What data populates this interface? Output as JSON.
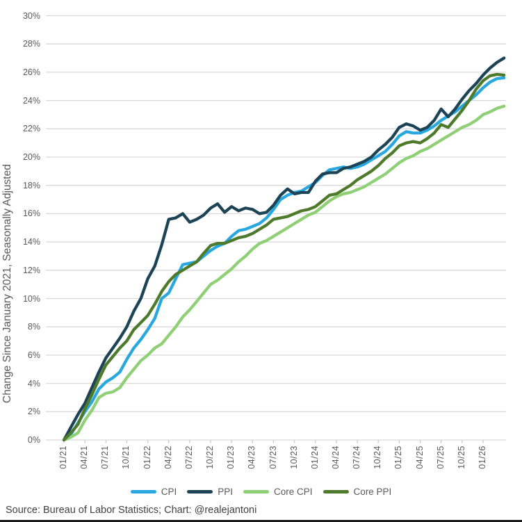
{
  "chart": {
    "y_axis_title": "Change Since January 2021, Seasonally Adjusted",
    "source_note": "Source: Bureau of Labor Statistics; Chart: @realejantoni",
    "colors": {
      "grid": "#D9D9D9",
      "axis": "#D9D9D9",
      "tick": "#C9C9C9",
      "label_text": "#595959",
      "source_text": "#404040"
    }
  },
  "chart_data": {
    "type": "line",
    "title": "",
    "xlabel": "",
    "ylabel": "Change Since January 2021, Seasonally Adjusted",
    "frequency": "monthly",
    "x_start": "01/21",
    "x_end": "04/26",
    "ylim": [
      0,
      30
    ],
    "grid": true,
    "legend_position": "bottom",
    "y_tick_labels": [
      "0%",
      "2%",
      "4%",
      "6%",
      "8%",
      "10%",
      "12%",
      "14%",
      "16%",
      "18%",
      "20%",
      "22%",
      "24%",
      "26%",
      "28%",
      "30%"
    ],
    "x_tick_labels": [
      "01/21",
      "04/21",
      "07/21",
      "10/21",
      "01/22",
      "04/22",
      "07/22",
      "10/22",
      "01/23",
      "04/23",
      "07/23",
      "10/23",
      "01/24",
      "04/24",
      "07/24",
      "10/24",
      "01/25",
      "04/25",
      "07/25",
      "10/25",
      "01/26"
    ],
    "x_tick_every_months": 3,
    "series": [
      {
        "name": "CPI",
        "color": "#29A8E0",
        "values": [
          0.0,
          0.4,
          1.2,
          2.0,
          2.7,
          3.6,
          4.1,
          4.4,
          4.8,
          5.7,
          6.5,
          7.1,
          7.8,
          8.6,
          10.0,
          10.4,
          11.4,
          12.4,
          12.5,
          12.6,
          13.0,
          13.4,
          13.7,
          13.9,
          14.4,
          14.8,
          14.9,
          15.1,
          15.3,
          15.7,
          16.3,
          17.0,
          17.3,
          17.5,
          17.6,
          17.9,
          18.2,
          18.7,
          19.1,
          19.2,
          19.3,
          19.2,
          19.3,
          19.5,
          19.8,
          20.1,
          20.4,
          20.9,
          21.5,
          21.8,
          21.7,
          21.7,
          21.9,
          22.2,
          22.6,
          22.9,
          23.2,
          23.6,
          24.0,
          24.4,
          24.9,
          25.3,
          25.55,
          25.6
        ]
      },
      {
        "name": "PPI",
        "color": "#1D4456",
        "values": [
          0.0,
          0.9,
          1.8,
          2.6,
          3.7,
          4.8,
          5.8,
          6.5,
          7.2,
          8.0,
          9.1,
          10.0,
          11.4,
          12.3,
          13.8,
          15.6,
          15.7,
          16.0,
          15.4,
          15.6,
          15.9,
          16.4,
          16.7,
          16.1,
          16.5,
          16.2,
          16.4,
          16.3,
          16.0,
          16.1,
          16.6,
          17.3,
          17.75,
          17.4,
          17.5,
          17.5,
          18.3,
          18.8,
          18.9,
          18.9,
          19.2,
          19.3,
          19.5,
          19.7,
          20.0,
          20.5,
          20.9,
          21.4,
          22.1,
          22.35,
          22.2,
          21.9,
          22.1,
          22.6,
          23.4,
          22.85,
          23.4,
          24.1,
          24.7,
          25.2,
          25.8,
          26.3,
          26.7,
          27.0
        ]
      },
      {
        "name": "Core CPI",
        "color": "#8FD077",
        "values": [
          0.0,
          0.2,
          0.5,
          1.4,
          2.1,
          3.0,
          3.3,
          3.4,
          3.7,
          4.4,
          5.0,
          5.6,
          6.0,
          6.5,
          6.8,
          7.4,
          8.0,
          8.7,
          9.2,
          9.8,
          10.4,
          11.0,
          11.3,
          11.7,
          12.1,
          12.6,
          13.0,
          13.5,
          13.9,
          14.1,
          14.4,
          14.7,
          15.0,
          15.3,
          15.6,
          15.9,
          16.1,
          16.5,
          16.9,
          17.2,
          17.4,
          17.5,
          17.7,
          17.9,
          18.2,
          18.5,
          18.8,
          19.2,
          19.6,
          19.9,
          20.1,
          20.4,
          20.6,
          20.9,
          21.2,
          21.5,
          21.8,
          22.1,
          22.3,
          22.6,
          23.0,
          23.2,
          23.45,
          23.6
        ]
      },
      {
        "name": "Core PPI",
        "color": "#4D7A2B",
        "values": [
          0.0,
          0.5,
          1.1,
          2.2,
          3.2,
          4.3,
          5.3,
          5.9,
          6.5,
          7.0,
          7.8,
          8.3,
          8.8,
          9.6,
          10.5,
          11.2,
          11.7,
          12.0,
          12.3,
          12.6,
          13.2,
          13.75,
          13.9,
          13.9,
          14.1,
          14.3,
          14.4,
          14.6,
          14.9,
          15.2,
          15.6,
          15.7,
          15.8,
          16.0,
          16.2,
          16.3,
          16.5,
          16.9,
          17.3,
          17.4,
          17.7,
          18.0,
          18.4,
          18.7,
          19.0,
          19.4,
          19.9,
          20.3,
          20.8,
          21.0,
          21.1,
          21.0,
          21.3,
          21.7,
          22.3,
          22.1,
          22.7,
          23.3,
          24.0,
          24.8,
          25.4,
          25.75,
          25.85,
          25.8
        ]
      }
    ]
  }
}
